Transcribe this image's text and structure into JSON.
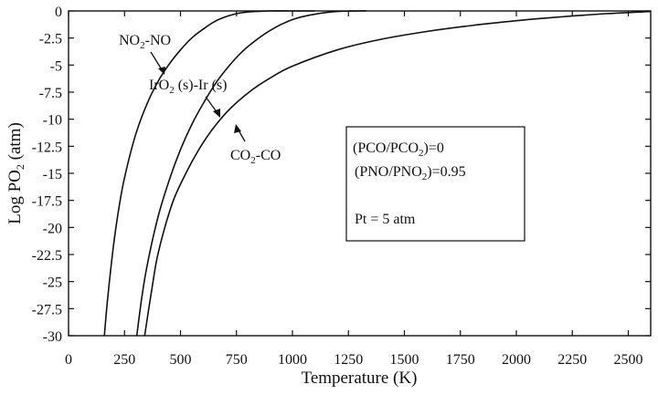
{
  "chart_data": {
    "type": "line",
    "xlabel": "Temperature (K)",
    "ylabel_main": "Log PO",
    "ylabel_sub": "2",
    "ylabel_unit": " (atm)",
    "xlim": [
      0,
      2600
    ],
    "ylim": [
      -30,
      0
    ],
    "xticks": [
      0,
      250,
      500,
      750,
      1000,
      1250,
      1500,
      1750,
      2000,
      2250,
      2500
    ],
    "xtick_labels": [
      "0",
      "250",
      "500",
      "750",
      "1000",
      "1250",
      "1500",
      "1750",
      "2000",
      "2250",
      "2500"
    ],
    "yticks": [
      0,
      -2.5,
      -5,
      -7.5,
      -10,
      -12.5,
      -15,
      -17.5,
      -20,
      -22.5,
      -25,
      -27.5,
      -30
    ],
    "ytick_labels": [
      "0",
      "-2.5",
      "-5",
      "-7.5",
      "-10",
      "-12.5",
      "-15",
      "-17.5",
      "-20",
      "-22.5",
      "-25",
      "-27.5",
      "-30"
    ],
    "grid": false,
    "series": [
      {
        "name": "NO2-NO",
        "x": [
          160,
          175,
          200,
          225,
          250,
          300,
          350,
          400,
          450,
          500,
          550,
          600,
          650,
          700,
          750,
          800,
          850,
          900,
          1000,
          1100
        ],
        "y": [
          -30,
          -26.5,
          -21.8,
          -18.2,
          -15.4,
          -11.4,
          -8.6,
          -6.5,
          -4.9,
          -3.6,
          -2.5,
          -1.7,
          -1.0,
          -0.55,
          -0.25,
          -0.1,
          -0.04,
          0,
          0,
          0
        ]
      },
      {
        "name": "IrO2 (s)-Ir (s)",
        "x": [
          305,
          325,
          350,
          400,
          450,
          500,
          550,
          600,
          650,
          700,
          750,
          800,
          900,
          1000,
          1100,
          1200,
          1300,
          1330
        ],
        "y": [
          -30,
          -26.8,
          -23.6,
          -19.0,
          -15.6,
          -12.8,
          -10.5,
          -8.6,
          -6.9,
          -5.5,
          -4.3,
          -3.3,
          -1.8,
          -0.8,
          -0.3,
          -0.05,
          0,
          0
        ]
      },
      {
        "name": "CO2-CO",
        "x": [
          340,
          375,
          400,
          450,
          500,
          600,
          700,
          800,
          900,
          1000,
          1200,
          1400,
          1600,
          1800,
          2000,
          2200,
          2400,
          2600
        ],
        "y": [
          -30,
          -25.3,
          -22.4,
          -18.6,
          -16.0,
          -12.2,
          -9.5,
          -7.6,
          -6.2,
          -5.1,
          -3.6,
          -2.6,
          -1.9,
          -1.35,
          -0.9,
          -0.55,
          -0.25,
          -0.05
        ]
      }
    ],
    "labels": {
      "no2": {
        "main": "NO",
        "sub": "2",
        "rest": "-NO"
      },
      "iro2": {
        "main": "IrO",
        "sub": "2",
        "rest": " (s)-Ir (s)"
      },
      "co2": {
        "main": "CO",
        "sub": "2",
        "rest": "-CO"
      }
    },
    "legend_box": {
      "line1_a": "(PCO/PCO",
      "line1_sub": "2",
      "line1_b": ")=0",
      "line2_a": "(PNO/PNO",
      "line2_sub": "2",
      "line2_b": ")=0.95",
      "line3": "Pt = 5 atm"
    }
  }
}
